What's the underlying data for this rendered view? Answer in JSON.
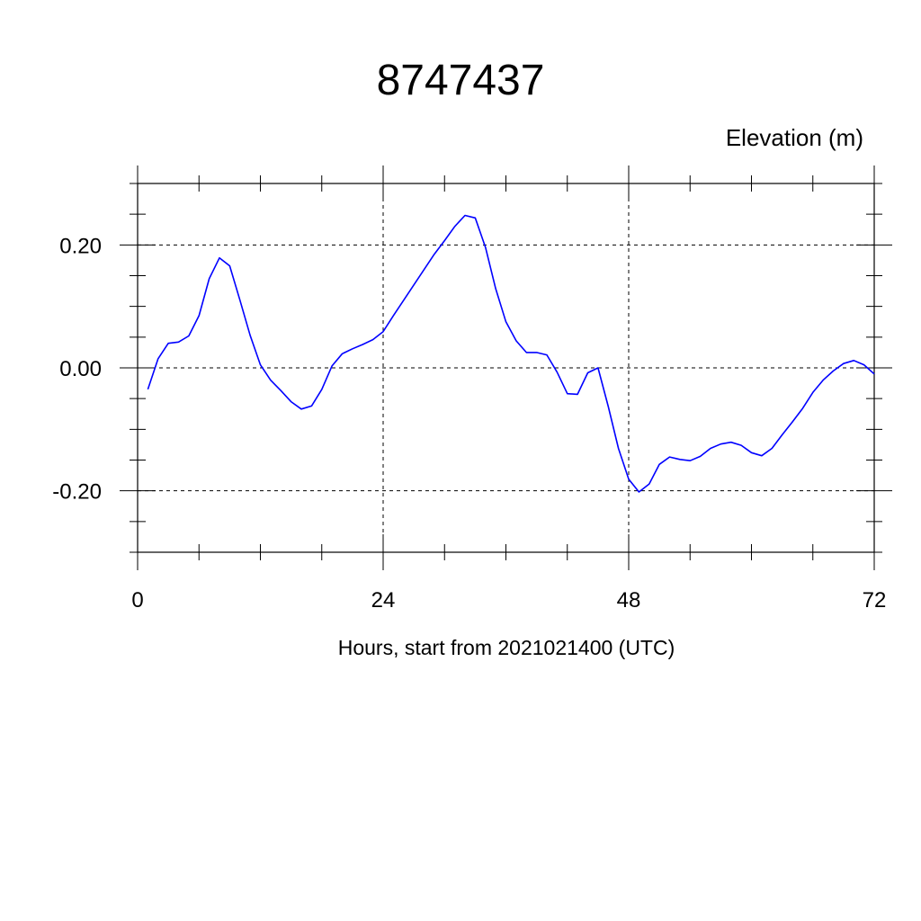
{
  "chart_data": {
    "type": "line",
    "title": "8747437",
    "variable_label": "Elevation (m)",
    "xlabel": "Hours, start from 2021021400 (UTC)",
    "ylabel": "",
    "xlim": [
      0,
      72
    ],
    "ylim": [
      -0.3,
      0.3
    ],
    "x_ticks": [
      0,
      24,
      48,
      72
    ],
    "x_tick_labels": [
      "0",
      "24",
      "48",
      "72"
    ],
    "y_ticks": [
      -0.2,
      0.0,
      0.2
    ],
    "y_tick_labels": [
      "-0.20",
      "0.00",
      "0.20"
    ],
    "grid": true,
    "line_color": "#0000ff",
    "series": [
      {
        "x": [
          1,
          2,
          3,
          4,
          5,
          6,
          7,
          8,
          9,
          10,
          11,
          12,
          13,
          14,
          15,
          16,
          17,
          18,
          19,
          20,
          21,
          22,
          23,
          24,
          25,
          26,
          27,
          28,
          29,
          30,
          31,
          32,
          33,
          34,
          35,
          36,
          37,
          38,
          39,
          40,
          41,
          42,
          43,
          44,
          45,
          46,
          47,
          48,
          49,
          50,
          51,
          52,
          53,
          54,
          55,
          56,
          57,
          58,
          59,
          60,
          61,
          62,
          63,
          64,
          65,
          66,
          67,
          68,
          69,
          70,
          71,
          72
        ],
        "values": [
          -0.035,
          0.015,
          0.04,
          0.042,
          0.052,
          0.085,
          0.145,
          0.179,
          0.166,
          0.11,
          0.053,
          0.005,
          -0.02,
          -0.037,
          -0.055,
          -0.067,
          -0.062,
          -0.035,
          0.003,
          0.023,
          0.031,
          0.038,
          0.046,
          0.059,
          0.085,
          0.11,
          0.135,
          0.16,
          0.185,
          0.207,
          0.23,
          0.248,
          0.244,
          0.196,
          0.129,
          0.075,
          0.044,
          0.025,
          0.025,
          0.021,
          -0.007,
          -0.042,
          -0.043,
          -0.008,
          0.0,
          -0.063,
          -0.131,
          -0.181,
          -0.202,
          -0.189,
          -0.157,
          -0.145,
          -0.149,
          -0.151,
          -0.144,
          -0.131,
          -0.124,
          -0.121,
          -0.126,
          -0.138,
          -0.143,
          -0.131,
          -0.109,
          -0.088,
          -0.066,
          -0.04,
          -0.02,
          -0.005,
          0.007,
          0.012,
          0.005,
          -0.01
        ]
      }
    ]
  }
}
